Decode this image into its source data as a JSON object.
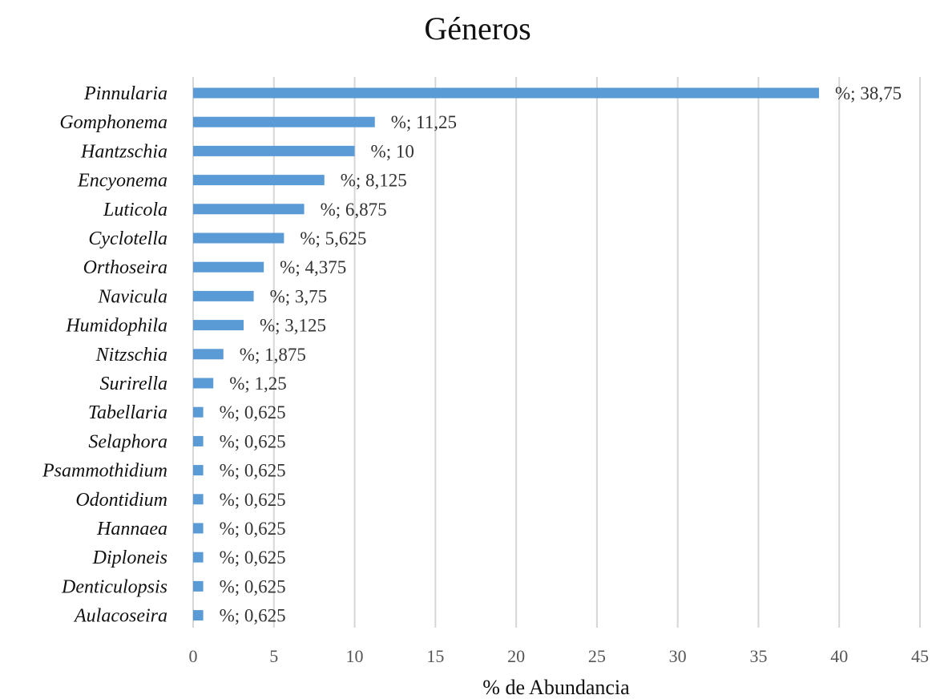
{
  "chart_data": {
    "type": "bar",
    "orientation": "horizontal",
    "title": "Géneros",
    "xlabel": "% de Abundancia",
    "ylabel": "",
    "xlim": [
      0,
      45
    ],
    "xticks": [
      0,
      5,
      10,
      15,
      20,
      25,
      30,
      35,
      40,
      45
    ],
    "grid": true,
    "legend": "none",
    "bar_color": "#5b9bd5",
    "categories": [
      "Pinnularia",
      "Gomphonema",
      "Hantzschia",
      "Encyonema",
      "Luticola",
      "Cyclotella",
      "Orthoseira",
      "Navicula",
      "Humidophila",
      "Nitzschia",
      "Surirella",
      "Tabellaria",
      "Selaphora",
      "Psammothidium",
      "Odontidium",
      "Hannaea",
      "Diploneis",
      "Denticulopsis",
      "Aulacoseira"
    ],
    "values": [
      38.75,
      11.25,
      10,
      8.125,
      6.875,
      5.625,
      4.375,
      3.75,
      3.125,
      1.875,
      1.25,
      0.625,
      0.625,
      0.625,
      0.625,
      0.625,
      0.625,
      0.625,
      0.625
    ],
    "data_labels": [
      "%; 38,75",
      "%; 11,25",
      "%; 10",
      "%; 8,125",
      "%; 6,875",
      "%; 5,625",
      "%; 4,375",
      "%; 3,75",
      "%; 3,125",
      "%; 1,875",
      "%; 1,25",
      "%; 0,625",
      "%; 0,625",
      "%; 0,625",
      "%; 0,625",
      "%; 0,625",
      "%; 0,625",
      "%; 0,625",
      "%; 0,625"
    ]
  }
}
